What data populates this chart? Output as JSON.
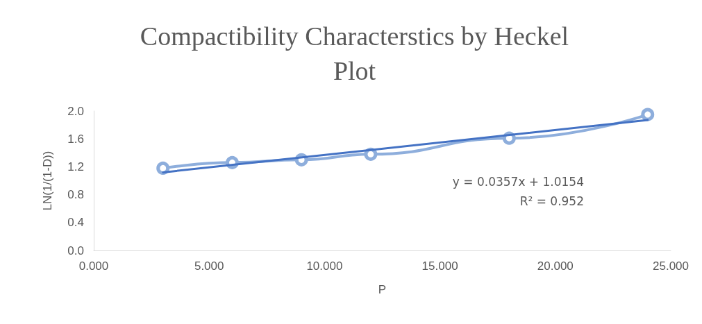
{
  "chart_data": {
    "type": "line",
    "title": "Compactibility Characterstics by Heckel\nPlot",
    "xlabel": "P",
    "ylabel": "LN(1/(1-D))",
    "x": [
      3,
      6,
      9,
      12,
      18,
      24
    ],
    "series": [
      {
        "color": "#8eaedc",
        "values": [
          1.18,
          1.26,
          1.3,
          1.38,
          1.61,
          1.95
        ],
        "marker": "circle"
      },
      {
        "type": "line",
        "color": "#4472c4",
        "x": [
          3,
          24
        ],
        "values": [
          1.12,
          1.87
        ],
        "marker": "none"
      }
    ],
    "xlim": [
      0,
      25
    ],
    "xticks": [
      {
        "value": 0,
        "label": "0.000"
      },
      {
        "value": 5,
        "label": "5.000"
      },
      {
        "value": 10,
        "label": "10.000"
      },
      {
        "value": 15,
        "label": "15.000"
      },
      {
        "value": 20,
        "label": "20.000"
      },
      {
        "value": 25,
        "label": "25.000"
      }
    ],
    "ylim": [
      0,
      2
    ],
    "yticks": [
      {
        "value": 0,
        "label": "0.0"
      },
      {
        "value": 0.4,
        "label": "0.4"
      },
      {
        "value": 0.8,
        "label": "0.8"
      },
      {
        "value": 1.2,
        "label": "1.2"
      },
      {
        "value": 1.6,
        "label": "1.6"
      },
      {
        "value": 2,
        "label": "2.0"
      }
    ],
    "grid": false,
    "line_style": "solid",
    "annotations": [
      "y = 0.0357x + 1.0154",
      "R² = 0.952"
    ]
  }
}
